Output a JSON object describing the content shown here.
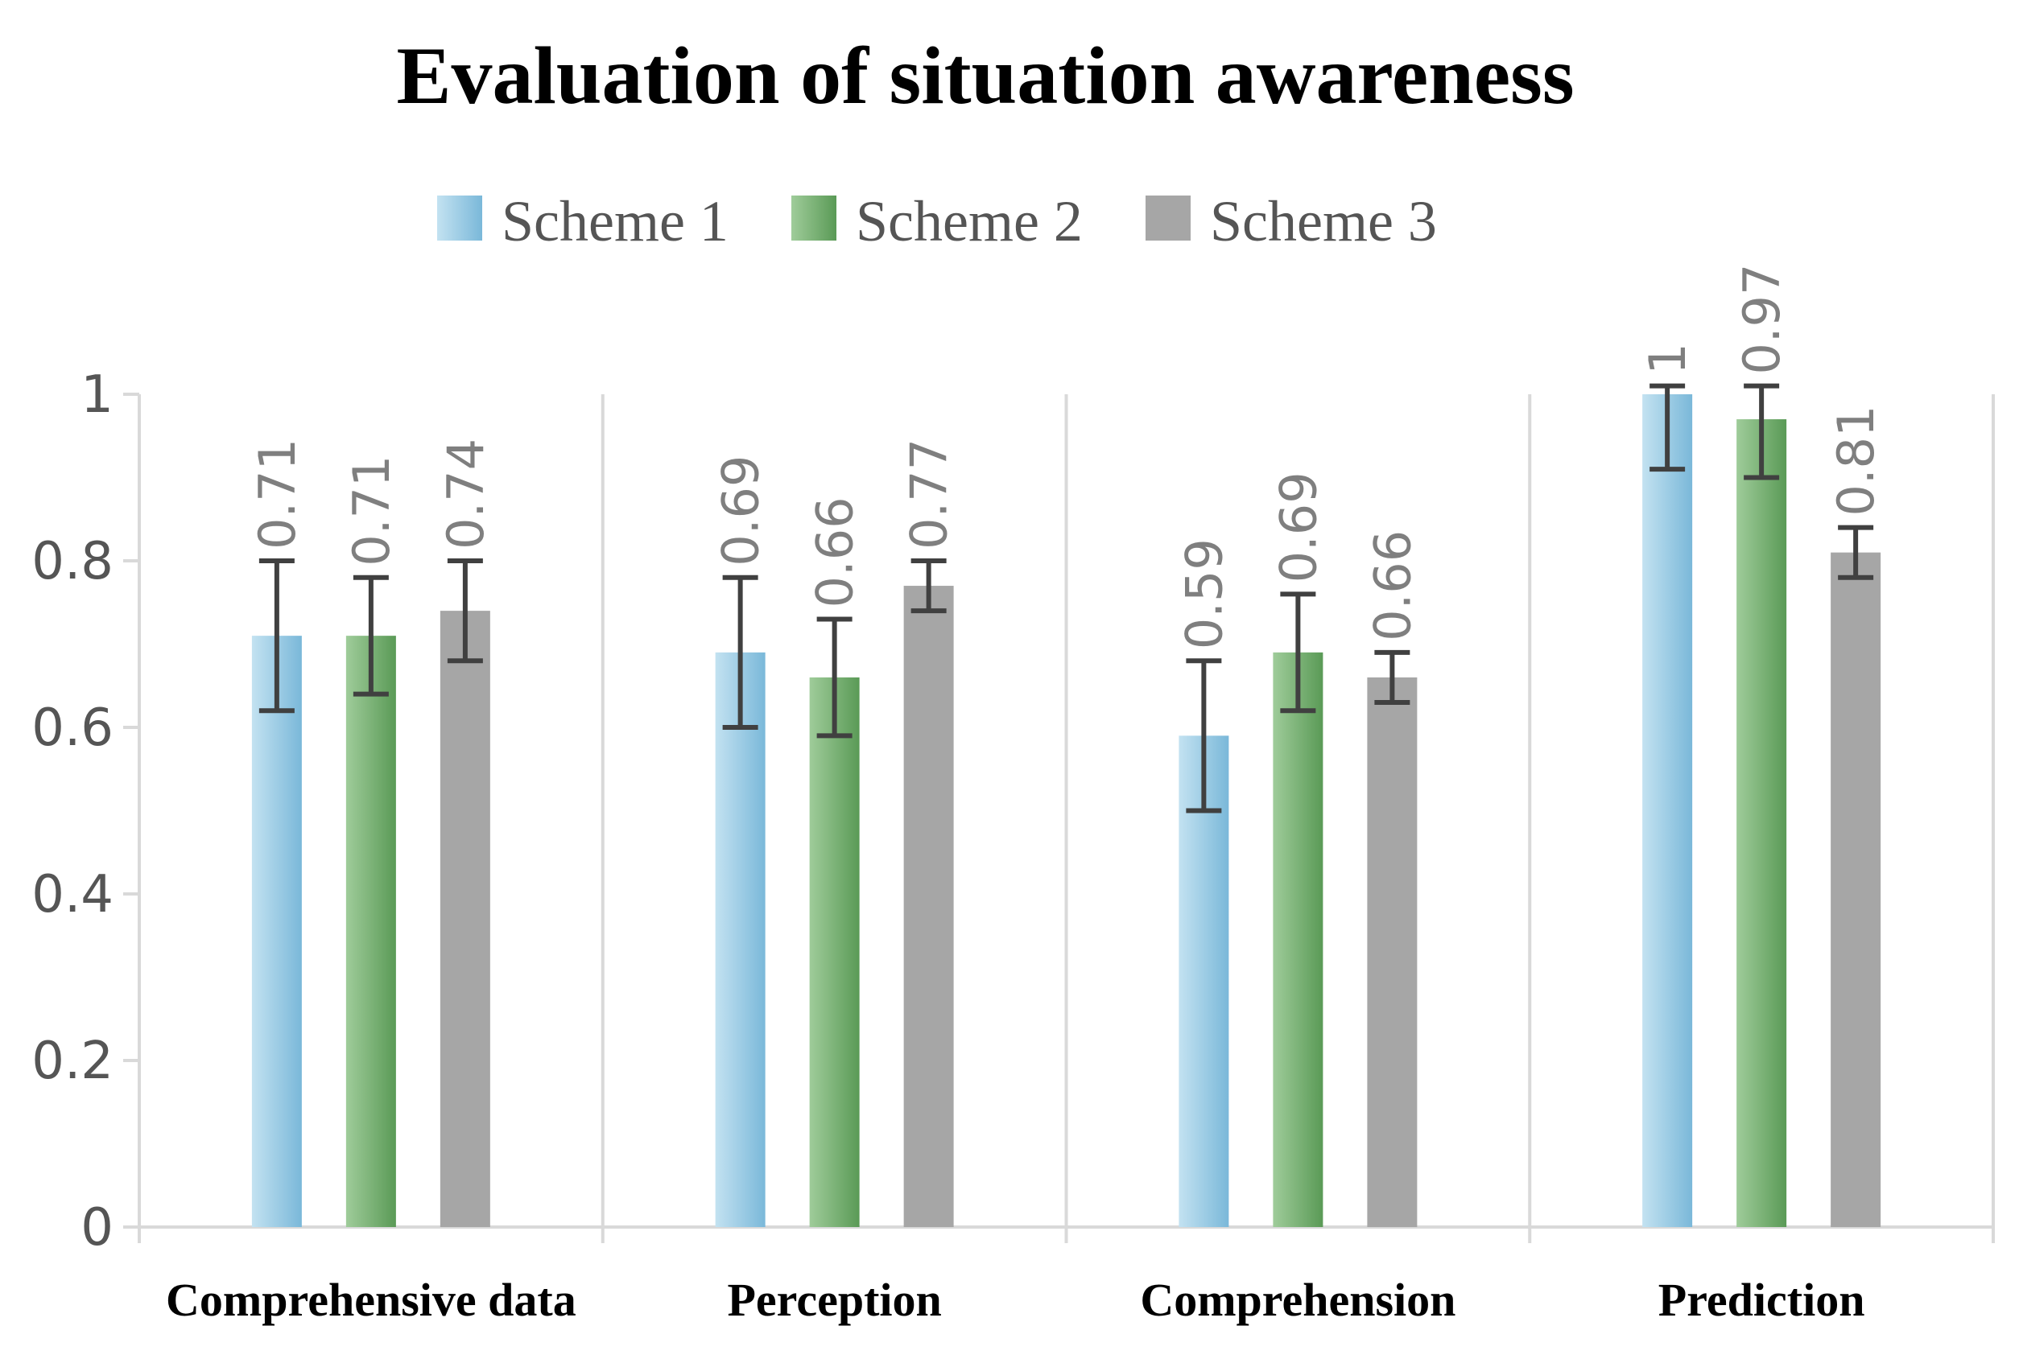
{
  "chart_data": {
    "type": "bar",
    "title": "Evaluation of situation awareness",
    "xlabel": "",
    "ylabel": "",
    "ylim": [
      0,
      1
    ],
    "yticks": [
      "0",
      "0.2",
      "0.4",
      "0.6",
      "0.8",
      "1"
    ],
    "ytick_values": [
      0,
      0.2,
      0.4,
      0.6,
      0.8,
      1
    ],
    "grid": false,
    "legend_position": "top",
    "categories": [
      "Comprehensive data",
      "Perception",
      "Comprehension",
      "Prediction"
    ],
    "series": [
      {
        "name": "Scheme 1",
        "values": [
          0.71,
          0.69,
          0.59,
          1
        ],
        "labels": [
          "0.71",
          "0.69",
          "0.59",
          "1"
        ],
        "error_low": [
          0.62,
          0.6,
          0.5,
          0.91
        ],
        "error_high": [
          0.8,
          0.78,
          0.68,
          1.01
        ],
        "color_light": "#c3e2f1",
        "color_dark": "#7ab8d9"
      },
      {
        "name": "Scheme 2",
        "values": [
          0.71,
          0.66,
          0.69,
          0.97
        ],
        "labels": [
          "0.71",
          "0.66",
          "0.69",
          "0.97"
        ],
        "error_low": [
          0.64,
          0.59,
          0.62,
          0.9
        ],
        "error_high": [
          0.78,
          0.73,
          0.76,
          1.01
        ],
        "color_light": "#9fcc9a",
        "color_dark": "#5a9a56"
      },
      {
        "name": "Scheme 3",
        "values": [
          0.74,
          0.77,
          0.66,
          0.81
        ],
        "labels": [
          "0.74",
          "0.77",
          "0.66",
          "0.81"
        ],
        "error_low": [
          0.68,
          0.74,
          0.63,
          0.78
        ],
        "error_high": [
          0.8,
          0.8,
          0.69,
          0.84
        ],
        "color_light": "#a6a6a6",
        "color_dark": "#a6a6a6"
      }
    ],
    "colors": {
      "axis": "#d9d9d9",
      "errorbar": "#404040",
      "text_gray": "#555555"
    }
  }
}
